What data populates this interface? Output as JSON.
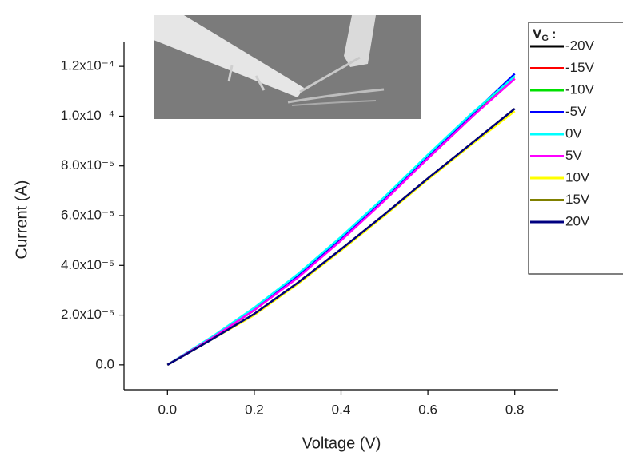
{
  "chart_data": {
    "type": "line",
    "xlabel": "Voltage (V)",
    "ylabel": "Current (A)",
    "legend_title": {
      "main": "V",
      "subscript": "G",
      "suffix": ":"
    },
    "legend_position": "upper right",
    "x": [
      0,
      0.1,
      0.2,
      0.3,
      0.4,
      0.5,
      0.6,
      0.7,
      0.8
    ],
    "series": [
      {
        "name": "-20V",
        "color": "#000000",
        "values": [
          0,
          1.05e-05,
          2.2e-05,
          3.55e-05,
          5.05e-05,
          6.65e-05,
          8.3e-05,
          9.95e-05,
          0.000116
        ]
      },
      {
        "name": "-15V",
        "color": "#ff0000",
        "values": [
          0,
          1.05e-05,
          2.2e-05,
          3.55e-05,
          5.05e-05,
          6.65e-05,
          8.35e-05,
          0.0001,
          0.000115
        ]
      },
      {
        "name": "-10V",
        "color": "#00e000",
        "values": [
          0,
          1.05e-05,
          2.2e-05,
          3.55e-05,
          5.05e-05,
          6.65e-05,
          8.35e-05,
          0.0001,
          0.000116
        ]
      },
      {
        "name": "-5V",
        "color": "#0000ff",
        "values": [
          0,
          1.05e-05,
          2.22e-05,
          3.58e-05,
          5.08e-05,
          6.7e-05,
          8.4e-05,
          0.0001005,
          0.000117
        ]
      },
      {
        "name": "0V",
        "color": "#00ffff",
        "values": [
          0,
          1.1e-05,
          2.3e-05,
          3.65e-05,
          5.15e-05,
          6.75e-05,
          8.45e-05,
          0.000101,
          0.000116
        ]
      },
      {
        "name": "5V",
        "color": "#ff00ff",
        "values": [
          0,
          1.05e-05,
          2.2e-05,
          3.5e-05,
          5e-05,
          6.6e-05,
          8.3e-05,
          9.95e-05,
          0.000115
        ]
      },
      {
        "name": "10V",
        "color": "#ffff00",
        "values": [
          0,
          1e-05,
          2e-05,
          3.25e-05,
          4.6e-05,
          6e-05,
          7.45e-05,
          8.85e-05,
          0.000102
        ]
      },
      {
        "name": "15V",
        "color": "#808000",
        "values": [
          0,
          1e-05,
          2.05e-05,
          3.3e-05,
          4.65e-05,
          6.05e-05,
          7.5e-05,
          8.9e-05,
          0.000103
        ]
      },
      {
        "name": "20V",
        "color": "#000080",
        "values": [
          0,
          1e-05,
          2.05e-05,
          3.3e-05,
          4.65e-05,
          6.05e-05,
          7.5e-05,
          8.9e-05,
          0.000103
        ]
      }
    ],
    "xlim": [
      -0.1,
      0.9
    ],
    "ylim": [
      -1e-05,
      0.00013
    ],
    "xticks": [
      {
        "value": 0,
        "label": "0.0"
      },
      0.2,
      0.4,
      0.6,
      0.8
    ],
    "yticks": [
      {
        "value": 0,
        "label": "0.0"
      },
      {
        "value": 2e-05,
        "label": "2.0x10⁻⁵"
      },
      {
        "value": 4e-05,
        "label": "4.0x10⁻⁵"
      },
      {
        "value": 6e-05,
        "label": "6.0x10⁻⁵"
      },
      {
        "value": 8e-05,
        "label": "8.0x10⁻⁵"
      },
      {
        "value": 0.0001,
        "label": "1.0x10⁻⁴"
      },
      {
        "value": 0.00012,
        "label": "1.2x10⁻⁴"
      }
    ]
  }
}
